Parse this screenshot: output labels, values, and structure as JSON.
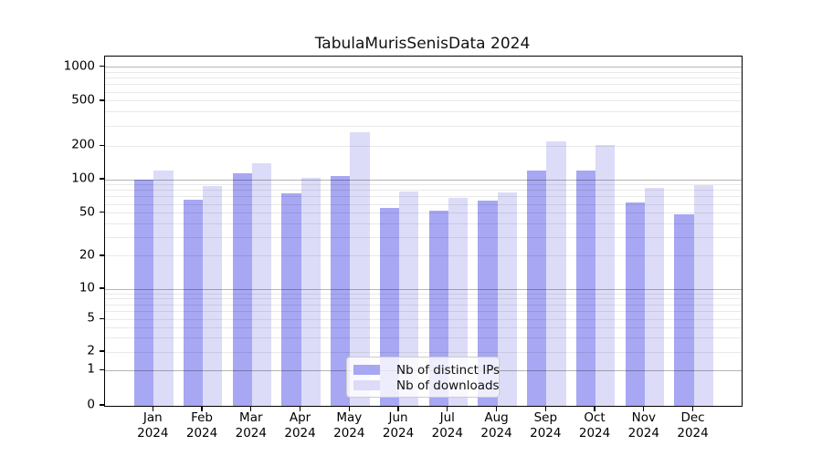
{
  "chart_data": {
    "type": "bar",
    "title": "TabulaMurisSenisData 2024",
    "categories": [
      "Jan",
      "Feb",
      "Mar",
      "Apr",
      "May",
      "Jun",
      "Jul",
      "Aug",
      "Sep",
      "Oct",
      "Nov",
      "Dec"
    ],
    "category_year": "2024",
    "series": [
      {
        "name": "Nb of distinct IPs",
        "color": "#a7a7f3",
        "values": [
          100,
          66,
          115,
          75,
          108,
          56,
          53,
          65,
          120,
          120,
          62,
          49
        ]
      },
      {
        "name": "Nb of downloads",
        "color": "#dcdcf8",
        "values": [
          120,
          87,
          140,
          103,
          265,
          78,
          68,
          77,
          220,
          204,
          84,
          90
        ]
      }
    ],
    "yscale": "symlog",
    "y_ticks": [
      0,
      1,
      2,
      5,
      10,
      20,
      50,
      100,
      200,
      500,
      1000
    ],
    "ylim": [
      0,
      1250
    ],
    "xlabel": "",
    "ylabel": "",
    "grid": "horizontal major+minor",
    "legend_position": "lower center"
  },
  "colors": {
    "grid_major": "#b5b5b5",
    "grid_minor": "#e9e9e9",
    "spine": "#000000",
    "background": "#ffffff"
  }
}
